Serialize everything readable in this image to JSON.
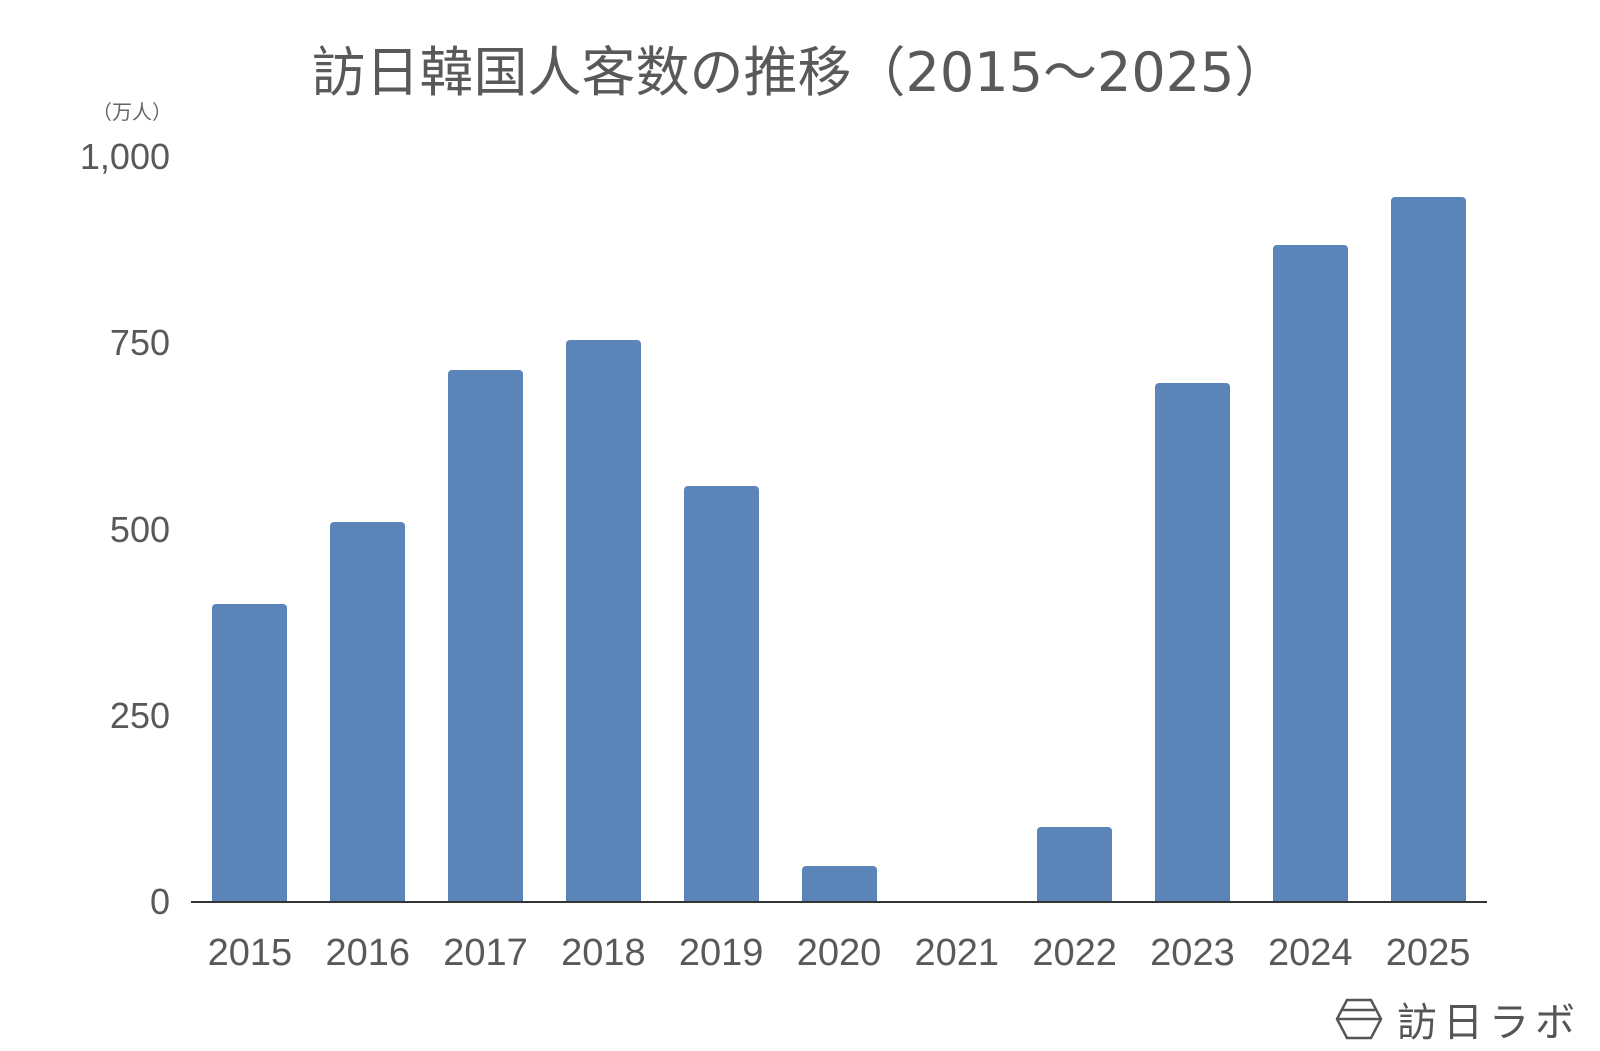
{
  "chart_data": {
    "type": "bar",
    "title": "訪日韓国人客数の推移（2015〜2025）",
    "xlabel": "",
    "ylabel": "（万人）",
    "ylim": [
      0,
      1000
    ],
    "yticks": [
      0,
      250,
      500,
      750,
      1000
    ],
    "ytick_labels": [
      "0",
      "250",
      "500",
      "750",
      "1,000"
    ],
    "grid": false,
    "legend": null,
    "categories": [
      "2015",
      "2016",
      "2017",
      "2018",
      "2019",
      "2020",
      "2021",
      "2022",
      "2023",
      "2024",
      "2025"
    ],
    "values": [
      400,
      510,
      714,
      754,
      558,
      49,
      2,
      101,
      696,
      882,
      946
    ],
    "bar_color": "#5b85b8"
  },
  "branding": {
    "logo_text": "訪日ラボ"
  }
}
